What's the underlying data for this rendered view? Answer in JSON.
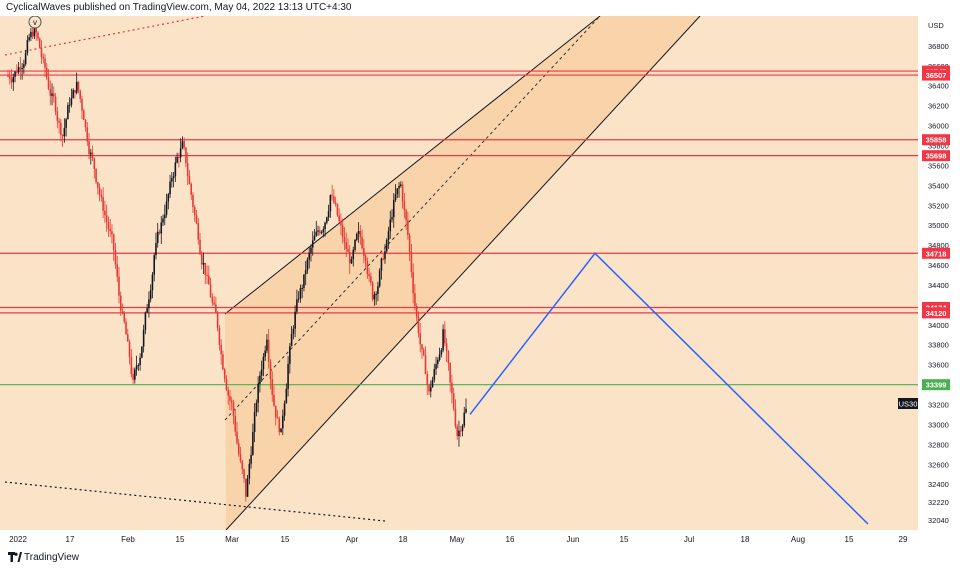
{
  "header": {
    "published_line": "CyclicalWaves published on TradingView.com, May 04, 2022 13:13 UTC+4:30"
  },
  "footer": {
    "brand_text": "TradingView"
  },
  "colors": {
    "background": "#fbe3c8",
    "channel_fill": "#f8d1a4",
    "candle_up": "#131722",
    "candle_down": "#e53935",
    "resistance_line": "#f23645",
    "support_line": "#4caf50",
    "projection_line": "#2962ff"
  },
  "chart_data": {
    "type": "candlestick",
    "symbol_badge": "US30",
    "currency": "USD",
    "interval_icon": "v",
    "x_ticks": [
      "2022",
      "17",
      "Feb",
      "15",
      "Mar",
      "15",
      "Apr",
      "18",
      "May",
      "16",
      "Jun",
      "15",
      "Jul",
      "18",
      "Aug",
      "15",
      "29"
    ],
    "y_ticks": [
      32040,
      32220,
      32400,
      32600,
      32800,
      33000,
      33200,
      33400,
      33600,
      33800,
      34000,
      34200,
      34400,
      34600,
      34800,
      35000,
      35200,
      35400,
      35600,
      35800,
      36000,
      36200,
      36400,
      36600,
      36800
    ],
    "ylim": [
      31940,
      37100
    ],
    "horizontal_levels": [
      {
        "value": 36547,
        "label": "36547",
        "color": "#f23645"
      },
      {
        "value": 36507,
        "label": "36507",
        "color": "#f23645"
      },
      {
        "value": 35858,
        "label": "35858",
        "color": "#f23645"
      },
      {
        "value": 35698,
        "label": "35698",
        "color": "#f23645"
      },
      {
        "value": 34718,
        "label": "34718",
        "color": "#f23645"
      },
      {
        "value": 34174,
        "label": "34174",
        "color": "#f23645"
      },
      {
        "value": 34120,
        "label": "34120",
        "color": "#f23645"
      },
      {
        "value": 33399,
        "label": "33399",
        "color": "#4caf50"
      }
    ],
    "current_price_label": "US30",
    "candles_close_path": [
      36500,
      36620,
      36800,
      36950,
      36700,
      36400,
      36200,
      35900,
      36250,
      36400,
      36100,
      35700,
      35400,
      35100,
      34850,
      34300,
      33900,
      33400,
      33700,
      34200,
      34700,
      35000,
      35300,
      35600,
      35800,
      35400,
      35000,
      34600,
      34300,
      34000,
      33500,
      33200,
      32700,
      32300,
      32900,
      33500,
      33900,
      33200,
      32900,
      33600,
      34100,
      34400,
      34700,
      34900,
      35000,
      35300,
      35100,
      34800,
      34600,
      34900,
      34700,
      34300,
      34500,
      34800,
      35200,
      35400,
      34900,
      34200,
      33700,
      33300,
      33600,
      33900,
      33400,
      32900,
      33100,
      33200
    ],
    "projection_path": [
      {
        "x": "May 4",
        "y": 33100
      },
      {
        "x": "Jun 8",
        "y": 34718
      },
      {
        "x": "Aug 22",
        "y": 32000
      }
    ]
  }
}
